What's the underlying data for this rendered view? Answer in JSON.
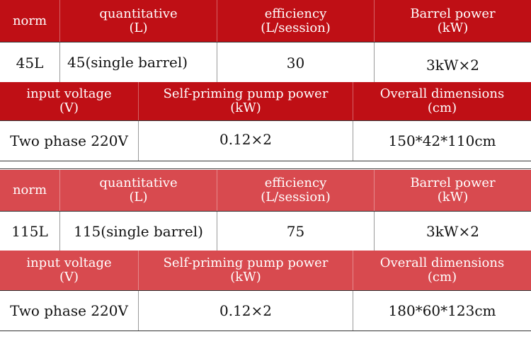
{
  "spec_tables": [
    {
      "header1": {
        "norm": "norm",
        "quantitative": [
          "quantitative",
          "(L)"
        ],
        "efficiency": [
          "efficiency",
          "(L/session)"
        ],
        "barrel_power": [
          "Barrel power",
          "(kW)"
        ]
      },
      "values1": {
        "norm": "45L",
        "quantitative": "45(single barrel)",
        "efficiency": "30",
        "barrel_power": "3kW×2"
      },
      "header2": {
        "input_voltage": [
          "input voltage",
          "(V)"
        ],
        "pump_power": [
          "Self-priming pump power",
          "(kW)"
        ],
        "dimensions": [
          "Overall dimensions",
          "(cm)"
        ]
      },
      "values2": {
        "input_voltage": "Two phase 220V",
        "pump_power": "0.12×2",
        "dimensions": "150*42*110cm"
      }
    },
    {
      "header1": {
        "norm": "norm",
        "quantitative": [
          "quantitative",
          "(L)"
        ],
        "efficiency": [
          "efficiency",
          "(L/session)"
        ],
        "barrel_power": [
          "Barrel power",
          "(kW)"
        ]
      },
      "values1": {
        "norm": "115L",
        "quantitative": "115(single barrel)",
        "efficiency": "75",
        "barrel_power": "3kW×2"
      },
      "header2": {
        "input_voltage": [
          "input voltage",
          "(V)"
        ],
        "pump_power": [
          "Self-priming pump power",
          "(kW)"
        ],
        "dimensions": [
          "Overall dimensions",
          "(cm)"
        ]
      },
      "values2": {
        "input_voltage": "Two phase 220V",
        "pump_power": "0.12×2",
        "dimensions": "180*60*123cm"
      }
    }
  ]
}
